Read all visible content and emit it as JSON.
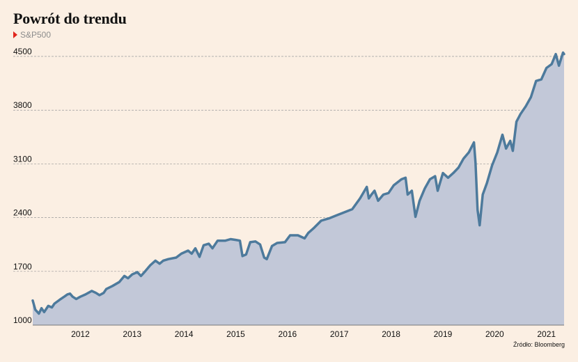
{
  "title": "Powrót do trendu",
  "source": "Źródło: Bloomberg",
  "chart_data": {
    "type": "area",
    "title": "Powrót do trendu",
    "xlabel": "",
    "ylabel": "",
    "ylim": [
      1000,
      4600
    ],
    "y_ticks": [
      1000,
      1700,
      2400,
      3100,
      3800,
      4500
    ],
    "x_ticks": [
      "2012",
      "2013",
      "2014",
      "2015",
      "2016",
      "2017",
      "2018",
      "2019",
      "2020",
      "2021"
    ],
    "grid": "horizontal dashed",
    "legend": "top-left",
    "colors": {
      "line": "#4d7a9c",
      "fill": "#c2c8d8",
      "grid": "#9a9a9a",
      "baseline": "#777777",
      "marker": "#e0261d"
    },
    "series": [
      {
        "name": "S&P500",
        "points": [
          [
            2011.58,
            1320
          ],
          [
            2011.63,
            1200
          ],
          [
            2011.7,
            1150
          ],
          [
            2011.75,
            1220
          ],
          [
            2011.8,
            1170
          ],
          [
            2011.88,
            1250
          ],
          [
            2011.95,
            1230
          ],
          [
            2012.0,
            1280
          ],
          [
            2012.1,
            1330
          ],
          [
            2012.2,
            1375
          ],
          [
            2012.25,
            1400
          ],
          [
            2012.3,
            1410
          ],
          [
            2012.35,
            1370
          ],
          [
            2012.42,
            1340
          ],
          [
            2012.5,
            1370
          ],
          [
            2012.6,
            1400
          ],
          [
            2012.72,
            1445
          ],
          [
            2012.8,
            1420
          ],
          [
            2012.87,
            1390
          ],
          [
            2012.95,
            1420
          ],
          [
            2013.0,
            1470
          ],
          [
            2013.12,
            1510
          ],
          [
            2013.25,
            1560
          ],
          [
            2013.35,
            1640
          ],
          [
            2013.42,
            1610
          ],
          [
            2013.5,
            1660
          ],
          [
            2013.6,
            1690
          ],
          [
            2013.67,
            1640
          ],
          [
            2013.75,
            1700
          ],
          [
            2013.85,
            1780
          ],
          [
            2013.95,
            1840
          ],
          [
            2014.03,
            1800
          ],
          [
            2014.1,
            1840
          ],
          [
            2014.2,
            1860
          ],
          [
            2014.35,
            1880
          ],
          [
            2014.45,
            1930
          ],
          [
            2014.58,
            1970
          ],
          [
            2014.65,
            1930
          ],
          [
            2014.72,
            2000
          ],
          [
            2014.8,
            1890
          ],
          [
            2014.88,
            2040
          ],
          [
            2014.98,
            2060
          ],
          [
            2015.05,
            2000
          ],
          [
            2015.15,
            2100
          ],
          [
            2015.3,
            2100
          ],
          [
            2015.4,
            2120
          ],
          [
            2015.5,
            2110
          ],
          [
            2015.58,
            2100
          ],
          [
            2015.63,
            1900
          ],
          [
            2015.7,
            1920
          ],
          [
            2015.78,
            2080
          ],
          [
            2015.88,
            2090
          ],
          [
            2015.97,
            2050
          ],
          [
            2016.05,
            1880
          ],
          [
            2016.1,
            1860
          ],
          [
            2016.2,
            2030
          ],
          [
            2016.3,
            2070
          ],
          [
            2016.45,
            2080
          ],
          [
            2016.55,
            2170
          ],
          [
            2016.7,
            2170
          ],
          [
            2016.83,
            2130
          ],
          [
            2016.9,
            2200
          ],
          [
            2017.0,
            2260
          ],
          [
            2017.15,
            2360
          ],
          [
            2017.3,
            2390
          ],
          [
            2017.45,
            2430
          ],
          [
            2017.6,
            2470
          ],
          [
            2017.75,
            2510
          ],
          [
            2017.9,
            2650
          ],
          [
            2018.03,
            2800
          ],
          [
            2018.07,
            2650
          ],
          [
            2018.12,
            2700
          ],
          [
            2018.18,
            2750
          ],
          [
            2018.25,
            2620
          ],
          [
            2018.35,
            2700
          ],
          [
            2018.45,
            2720
          ],
          [
            2018.55,
            2820
          ],
          [
            2018.7,
            2900
          ],
          [
            2018.78,
            2920
          ],
          [
            2018.82,
            2700
          ],
          [
            2018.9,
            2750
          ],
          [
            2018.97,
            2410
          ],
          [
            2019.05,
            2620
          ],
          [
            2019.15,
            2780
          ],
          [
            2019.25,
            2900
          ],
          [
            2019.35,
            2940
          ],
          [
            2019.4,
            2750
          ],
          [
            2019.5,
            2980
          ],
          [
            2019.6,
            2920
          ],
          [
            2019.7,
            2980
          ],
          [
            2019.8,
            3050
          ],
          [
            2019.9,
            3170
          ],
          [
            2020.0,
            3250
          ],
          [
            2020.1,
            3380
          ],
          [
            2020.13,
            3120
          ],
          [
            2020.17,
            2500
          ],
          [
            2020.21,
            2300
          ],
          [
            2020.27,
            2700
          ],
          [
            2020.35,
            2850
          ],
          [
            2020.45,
            3080
          ],
          [
            2020.55,
            3250
          ],
          [
            2020.65,
            3480
          ],
          [
            2020.72,
            3300
          ],
          [
            2020.8,
            3400
          ],
          [
            2020.85,
            3270
          ],
          [
            2020.92,
            3650
          ],
          [
            2021.0,
            3750
          ],
          [
            2021.1,
            3850
          ],
          [
            2021.2,
            3970
          ],
          [
            2021.3,
            4180
          ],
          [
            2021.4,
            4200
          ],
          [
            2021.5,
            4350
          ],
          [
            2021.6,
            4400
          ],
          [
            2021.68,
            4530
          ],
          [
            2021.74,
            4380
          ],
          [
            2021.82,
            4550
          ],
          [
            2021.84,
            4530
          ]
        ]
      }
    ]
  }
}
